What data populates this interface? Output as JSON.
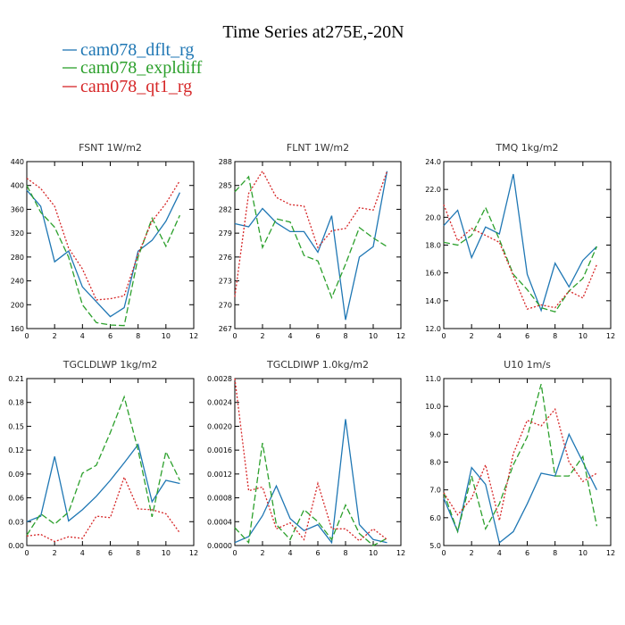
{
  "title": "Time Series at275E,-20N",
  "legend": [
    {
      "name": "cam078_dflt_rg",
      "color": "#1f77b4"
    },
    {
      "name": "cam078_expldiff",
      "color": "#2ca02c"
    },
    {
      "name": "cam078_qt1_rg",
      "color": "#d62728"
    }
  ],
  "chart_data": [
    {
      "type": "line",
      "title": "FSNT   1W/m2",
      "xlim": [
        0,
        12
      ],
      "ylim": [
        160,
        440
      ],
      "xticks": [
        0,
        2,
        4,
        6,
        8,
        10,
        12
      ],
      "yticks": [
        160,
        200,
        240,
        280,
        320,
        360,
        400,
        440
      ],
      "ytick_labels": [
        "160",
        "200",
        "240",
        "280",
        "320",
        "360",
        "400",
        "440"
      ],
      "x": [
        0,
        1,
        2,
        3,
        4,
        5,
        6,
        7,
        8,
        9,
        10,
        11
      ],
      "series": [
        {
          "name": "cam078_dflt_rg",
          "values": [
            392,
            365,
            272,
            290,
            230,
            205,
            180,
            195,
            290,
            308,
            340,
            388
          ],
          "dash": ""
        },
        {
          "name": "cam078_expldiff",
          "values": [
            400,
            355,
            330,
            280,
            200,
            170,
            166,
            165,
            280,
            345,
            298,
            350
          ],
          "dash": "7 3"
        },
        {
          "name": "cam078_qt1_rg",
          "values": [
            412,
            395,
            365,
            295,
            260,
            208,
            210,
            215,
            285,
            340,
            370,
            408
          ],
          "dash": "2 2"
        }
      ]
    },
    {
      "type": "line",
      "title": "FLNT   1W/m2",
      "xlim": [
        0,
        12
      ],
      "ylim": [
        267,
        288
      ],
      "xticks": [
        0,
        2,
        4,
        6,
        8,
        10,
        12
      ],
      "yticks": [
        267,
        270,
        273,
        276,
        279,
        282,
        285,
        288
      ],
      "ytick_labels": [
        "267",
        "270",
        "273",
        "276",
        "279",
        "282",
        "285",
        "288"
      ],
      "x": [
        0,
        1,
        2,
        3,
        4,
        5,
        6,
        7,
        8,
        9,
        10,
        11
      ],
      "series": [
        {
          "name": "cam078_dflt_rg",
          "values": [
            280.2,
            279.8,
            282.1,
            280.3,
            279.2,
            279.2,
            276.6,
            281.2,
            268.1,
            276.0,
            277.3,
            286.8
          ],
          "dash": ""
        },
        {
          "name": "cam078_expldiff",
          "values": [
            284.2,
            286.1,
            277.2,
            280.8,
            280.4,
            276.2,
            275.5,
            270.9,
            275.1,
            279.7,
            278.4,
            277.3
          ],
          "dash": "7 3"
        },
        {
          "name": "cam078_qt1_rg",
          "values": [
            271.0,
            284.0,
            286.8,
            283.5,
            282.6,
            282.4,
            277.2,
            279.3,
            279.6,
            282.2,
            281.9,
            286.8
          ],
          "dash": "2 2"
        }
      ]
    },
    {
      "type": "line",
      "title": "TMQ   1kg/m2",
      "xlim": [
        0,
        12
      ],
      "ylim": [
        12,
        24
      ],
      "xticks": [
        0,
        2,
        4,
        6,
        8,
        10,
        12
      ],
      "yticks": [
        12,
        14,
        16,
        18,
        20,
        22,
        24
      ],
      "ytick_labels": [
        "12.0",
        "14.0",
        "16.0",
        "18.0",
        "20.0",
        "22.0",
        "24.0"
      ],
      "x": [
        0,
        1,
        2,
        3,
        4,
        5,
        6,
        7,
        8,
        9,
        10,
        11
      ],
      "series": [
        {
          "name": "cam078_dflt_rg",
          "values": [
            19.4,
            20.5,
            17.1,
            19.3,
            18.8,
            23.1,
            15.9,
            13.3,
            16.7,
            15.0,
            16.9,
            17.9
          ],
          "dash": ""
        },
        {
          "name": "cam078_expldiff",
          "values": [
            18.2,
            18.0,
            18.7,
            20.7,
            18.4,
            15.9,
            14.8,
            13.5,
            13.2,
            14.7,
            15.6,
            17.9
          ],
          "dash": "7 3"
        },
        {
          "name": "cam078_qt1_rg",
          "values": [
            20.9,
            18.3,
            19.2,
            18.7,
            18.2,
            15.8,
            13.4,
            13.7,
            13.5,
            14.7,
            14.2,
            16.6
          ],
          "dash": "2 2"
        }
      ]
    },
    {
      "type": "line",
      "title": "TGCLDLWP   1kg/m2",
      "xlim": [
        0,
        12
      ],
      "ylim": [
        0,
        0.21
      ],
      "xticks": [
        0,
        2,
        4,
        6,
        8,
        10,
        12
      ],
      "yticks": [
        0,
        0.03,
        0.06,
        0.09,
        0.12,
        0.15,
        0.18,
        0.21
      ],
      "ytick_labels": [
        "0.00",
        "0.03",
        "0.06",
        "0.09",
        "0.12",
        "0.15",
        "0.18",
        "0.21"
      ],
      "x": [
        0,
        1,
        2,
        3,
        4,
        5,
        6,
        7,
        8,
        9,
        10,
        11
      ],
      "series": [
        {
          "name": "cam078_dflt_rg",
          "values": [
            0.03,
            0.037,
            0.112,
            0.031,
            0.045,
            0.062,
            0.082,
            0.104,
            0.127,
            0.055,
            0.082,
            0.078
          ],
          "dash": ""
        },
        {
          "name": "cam078_expldiff",
          "values": [
            0.013,
            0.04,
            0.027,
            0.042,
            0.091,
            0.101,
            0.142,
            0.187,
            0.12,
            0.036,
            0.118,
            0.082
          ],
          "dash": "7 3"
        },
        {
          "name": "cam078_qt1_rg",
          "values": [
            0.012,
            0.014,
            0.005,
            0.011,
            0.009,
            0.037,
            0.035,
            0.086,
            0.046,
            0.045,
            0.04,
            0.016
          ],
          "dash": "2 2"
        }
      ]
    },
    {
      "type": "line",
      "title": "TGCLDIWP   1.0kg/m2",
      "xlim": [
        0,
        12
      ],
      "ylim": [
        0,
        0.0028
      ],
      "xticks": [
        0,
        2,
        4,
        6,
        8,
        10,
        12
      ],
      "yticks": [
        0,
        0.0004,
        0.0008,
        0.0012,
        0.0016,
        0.002,
        0.0024,
        0.0028
      ],
      "ytick_labels": [
        "0.0000",
        "0.0004",
        "0.0008",
        "0.0012",
        "0.0016",
        "0.0020",
        "0.0024",
        "0.0028"
      ],
      "x": [
        0,
        1,
        2,
        3,
        4,
        5,
        6,
        7,
        8,
        9,
        10,
        11
      ],
      "series": [
        {
          "name": "cam078_dflt_rg",
          "values": [
            5e-05,
            0.00015,
            0.0005,
            0.001,
            0.00045,
            0.00025,
            0.00035,
            5e-05,
            0.00212,
            0.00035,
            0.0001,
            5e-05
          ],
          "dash": ""
        },
        {
          "name": "cam078_expldiff",
          "values": [
            0.0003,
            5e-05,
            0.00172,
            0.00035,
            0.0001,
            0.0006,
            0.0004,
            0.0001,
            0.00068,
            0.0002,
            0.0,
            0.00012
          ],
          "dash": "7 3"
        },
        {
          "name": "cam078_qt1_rg",
          "values": [
            0.0028,
            0.00092,
            0.00098,
            0.00028,
            0.00038,
            0.0001,
            0.00104,
            0.00028,
            0.00028,
            8e-05,
            0.00028,
            0.0001
          ],
          "dash": "2 2"
        }
      ]
    },
    {
      "type": "line",
      "title": "U10   1m/s",
      "xlim": [
        0,
        12
      ],
      "ylim": [
        5,
        11
      ],
      "xticks": [
        0,
        2,
        4,
        6,
        8,
        10,
        12
      ],
      "yticks": [
        5,
        6,
        7,
        8,
        9,
        10,
        11
      ],
      "ytick_labels": [
        "5.0",
        "6.0",
        "7.0",
        "8.0",
        "9.0",
        "10.0",
        "11.0"
      ],
      "x": [
        0,
        1,
        2,
        3,
        4,
        5,
        6,
        7,
        8,
        9,
        10,
        11
      ],
      "series": [
        {
          "name": "cam078_dflt_rg",
          "values": [
            6.7,
            5.5,
            7.8,
            7.2,
            5.1,
            5.5,
            6.5,
            7.6,
            7.5,
            9.0,
            8.0,
            7.0
          ],
          "dash": ""
        },
        {
          "name": "cam078_expldiff",
          "values": [
            6.9,
            5.5,
            7.5,
            5.6,
            6.5,
            7.9,
            8.9,
            10.8,
            7.5,
            7.5,
            8.2,
            5.7
          ],
          "dash": "7 3"
        },
        {
          "name": "cam078_qt1_rg",
          "values": [
            6.9,
            6.1,
            6.7,
            7.9,
            5.9,
            8.3,
            9.5,
            9.3,
            9.9,
            8.0,
            7.3,
            7.6
          ],
          "dash": "2 2"
        }
      ]
    }
  ]
}
